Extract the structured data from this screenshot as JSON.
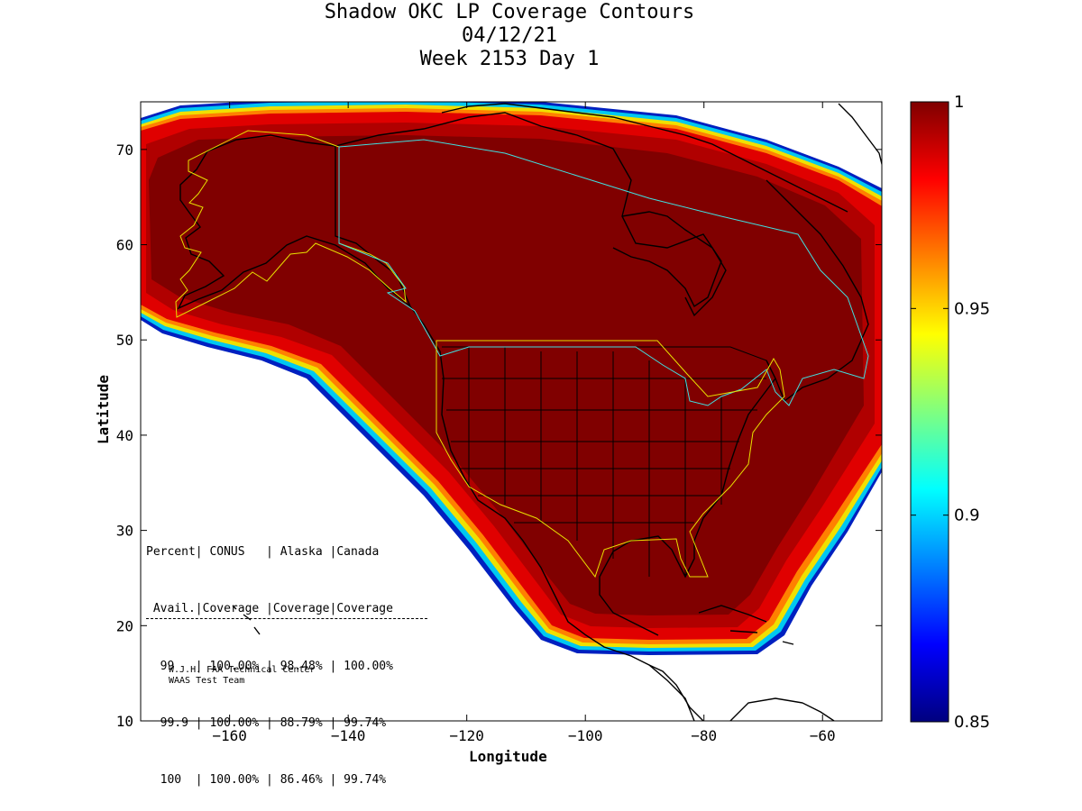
{
  "title": {
    "line1": "Shadow OKC LP Coverage Contours",
    "line2": "04/12/21",
    "line3": "Week 2153 Day 1"
  },
  "map": {
    "xlabel": "Longitude",
    "ylabel": "Latitude",
    "lon_range": [
      -175,
      -50
    ],
    "lat_range": [
      10,
      75
    ],
    "x_ticks": [
      -160,
      -140,
      -120,
      -100,
      -80,
      -60
    ],
    "y_ticks": [
      10,
      20,
      30,
      40,
      50,
      60,
      70
    ],
    "coverage_color": "#800000"
  },
  "colorbar": {
    "range": [
      0.85,
      1
    ],
    "ticks": [
      0.85,
      0.9,
      0.95,
      1
    ],
    "tick_labels": [
      "0.85",
      "0.9",
      "0.95",
      "1"
    ]
  },
  "stats": {
    "header1": "Percent| CONUS   | Alaska |Canada",
    "header2": " Avail.|Coverage |Coverage|Coverage",
    "rows": [
      "  99   | 100.00% | 98.48% | 100.00%",
      "  99.9 | 100.00% | 88.79% | 99.74%",
      "  100  | 100.00% | 86.46% | 99.74%"
    ]
  },
  "credits": {
    "line1": "W.J.H. FAA Technical Center",
    "line2": "WAAS Test Team"
  }
}
